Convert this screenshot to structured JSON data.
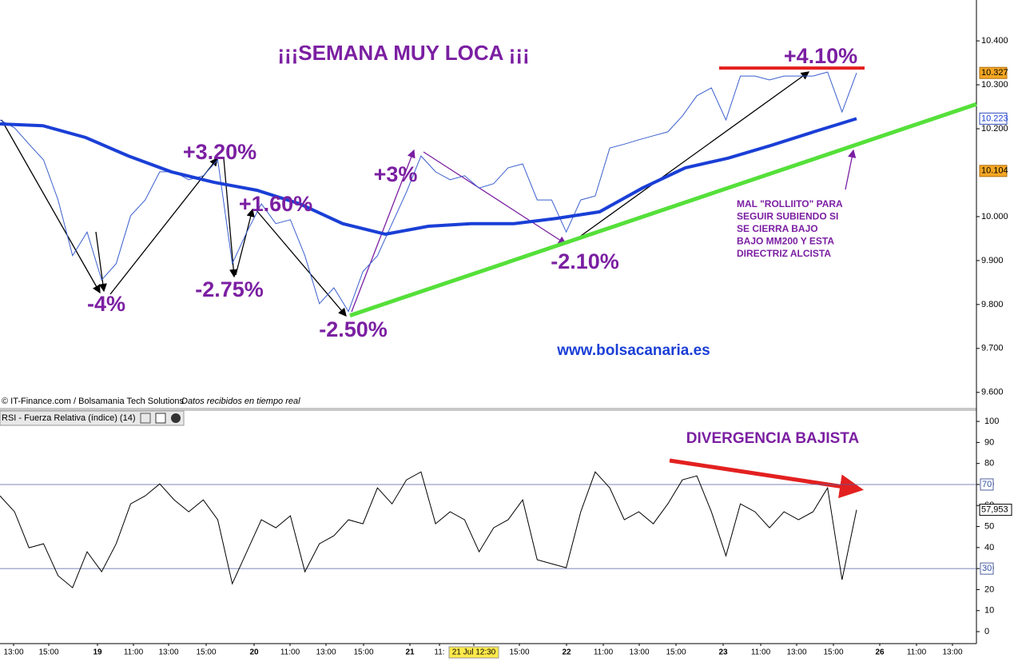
{
  "chart_data": [
    {
      "type": "line",
      "title": "¡¡¡SEMANA MUY LOCA ¡¡¡",
      "credit": "© IT-Finance.com / Bolsamania Tech Solutions",
      "credit_note": "Datos recibidos en tiempo real",
      "ylim": [
        9565,
        10493
      ],
      "yticks": [
        {
          "value": 9600,
          "label": "9.600"
        },
        {
          "value": 9700,
          "label": "9.700"
        },
        {
          "value": 9800,
          "label": "9.800"
        },
        {
          "value": 9900,
          "label": "9.900"
        },
        {
          "value": 10000,
          "label": "10.000"
        },
        {
          "value": 10200,
          "label": "10.200"
        },
        {
          "value": 10300,
          "label": "10.300"
        },
        {
          "value": 10400,
          "label": "10.400"
        }
      ],
      "series": [
        {
          "color": "#3a5fcd",
          "values": [
            10220,
            10202,
            10165,
            10129,
            10038,
            9911,
            9965,
            9856,
            9893,
            10002,
            10038,
            10102,
            10102,
            10084,
            10093,
            10129,
            9893,
            9965,
            10029,
            9984,
            9993,
            9911,
            9802,
            9838,
            9784,
            9875,
            9911,
            9984,
            10056,
            10138,
            10102,
            10084,
            10093,
            10065,
            10075,
            10111,
            10120,
            10038,
            10038,
            9965,
            10038,
            10047,
            10156,
            10165,
            10175,
            10184,
            10193,
            10229,
            10275,
            10293,
            10220,
            10320,
            10320,
            10311,
            10320,
            10320,
            10320,
            10329,
            10238,
            10327
          ]
        },
        {
          "color": "#1a3fd6",
          "values": [
            10211,
            10207,
            10180,
            10138,
            10102,
            10078,
            10060,
            10029,
            9984,
            9960,
            9978,
            9984,
            9984,
            9996,
            10011,
            10065,
            10111,
            10133,
            10162,
            10193,
            10223
          ]
        }
      ],
      "trendline": {
        "color": "#55e03a",
        "values": [
          9775,
          10256
        ]
      },
      "resistance": {
        "color": "#e32020",
        "values": [
          10338
        ]
      },
      "price_boxes": [
        {
          "value": 10327,
          "label": "10.327"
        },
        {
          "value": 10223,
          "label": "10.223"
        },
        {
          "value": 10104,
          "label": "10.104"
        }
      ],
      "annotations": [
        "+4.10%",
        "+3.20%",
        "+1.60%",
        "+3%",
        "-4%",
        "-2.75%",
        "-2.50%",
        "-2.10%",
        "www.bolsacanaria.es"
      ],
      "note": [
        "MAL \"ROLLIITO\" PARA",
        "SEGUIR SUBIENDO SI",
        "SE CIERRA BAJO",
        "BAJO MM200 Y ESTA",
        "DIRECTRIZ ALCISTA"
      ]
    },
    {
      "type": "line",
      "title": "RSI - Fuerza Relativa (índice) (14)",
      "annotation": "DIVERGENCIA BAJISTA",
      "ylim": [
        -5.7,
        104.6
      ],
      "yticks": [
        0,
        10,
        20,
        30,
        40,
        50,
        60,
        70,
        80,
        90,
        100
      ],
      "hlines": [
        70,
        30
      ],
      "last_box": {
        "value": 57.953,
        "label": "57,953"
      },
      "series": [
        {
          "color": "#000000",
          "values": [
            64.6,
            57.0,
            39.9,
            41.8,
            26.6,
            20.9,
            38.0,
            28.5,
            41.8,
            60.8,
            64.6,
            70.3,
            62.7,
            57.0,
            62.7,
            53.2,
            22.8,
            38.0,
            53.2,
            49.4,
            55.1,
            28.5,
            41.8,
            45.6,
            53.2,
            51.3,
            68.4,
            60.8,
            72.2,
            76.0,
            51.3,
            57.0,
            53.2,
            38.0,
            49.4,
            53.2,
            62.7,
            34.2,
            32.3,
            30.4,
            57.0,
            76.0,
            68.4,
            53.2,
            57.0,
            51.3,
            60.8,
            72.2,
            74.1,
            57.0,
            36.1,
            60.8,
            57.0,
            49.4,
            57.0,
            53.2,
            57.0,
            68.4,
            24.7,
            57.953
          ]
        }
      ],
      "x_labels": [
        "13:00",
        "15:00",
        "19",
        "11:00",
        "13:00",
        "15:00",
        "20",
        "11:00",
        "13:00",
        "15:00",
        "21",
        "11:",
        "21 Jul 12:30",
        "15:00",
        "22",
        "11:00",
        "13:00",
        "15:00",
        "23",
        "11:00",
        "13:00",
        "15:00",
        "26",
        "11:00",
        "13:00"
      ]
    }
  ]
}
